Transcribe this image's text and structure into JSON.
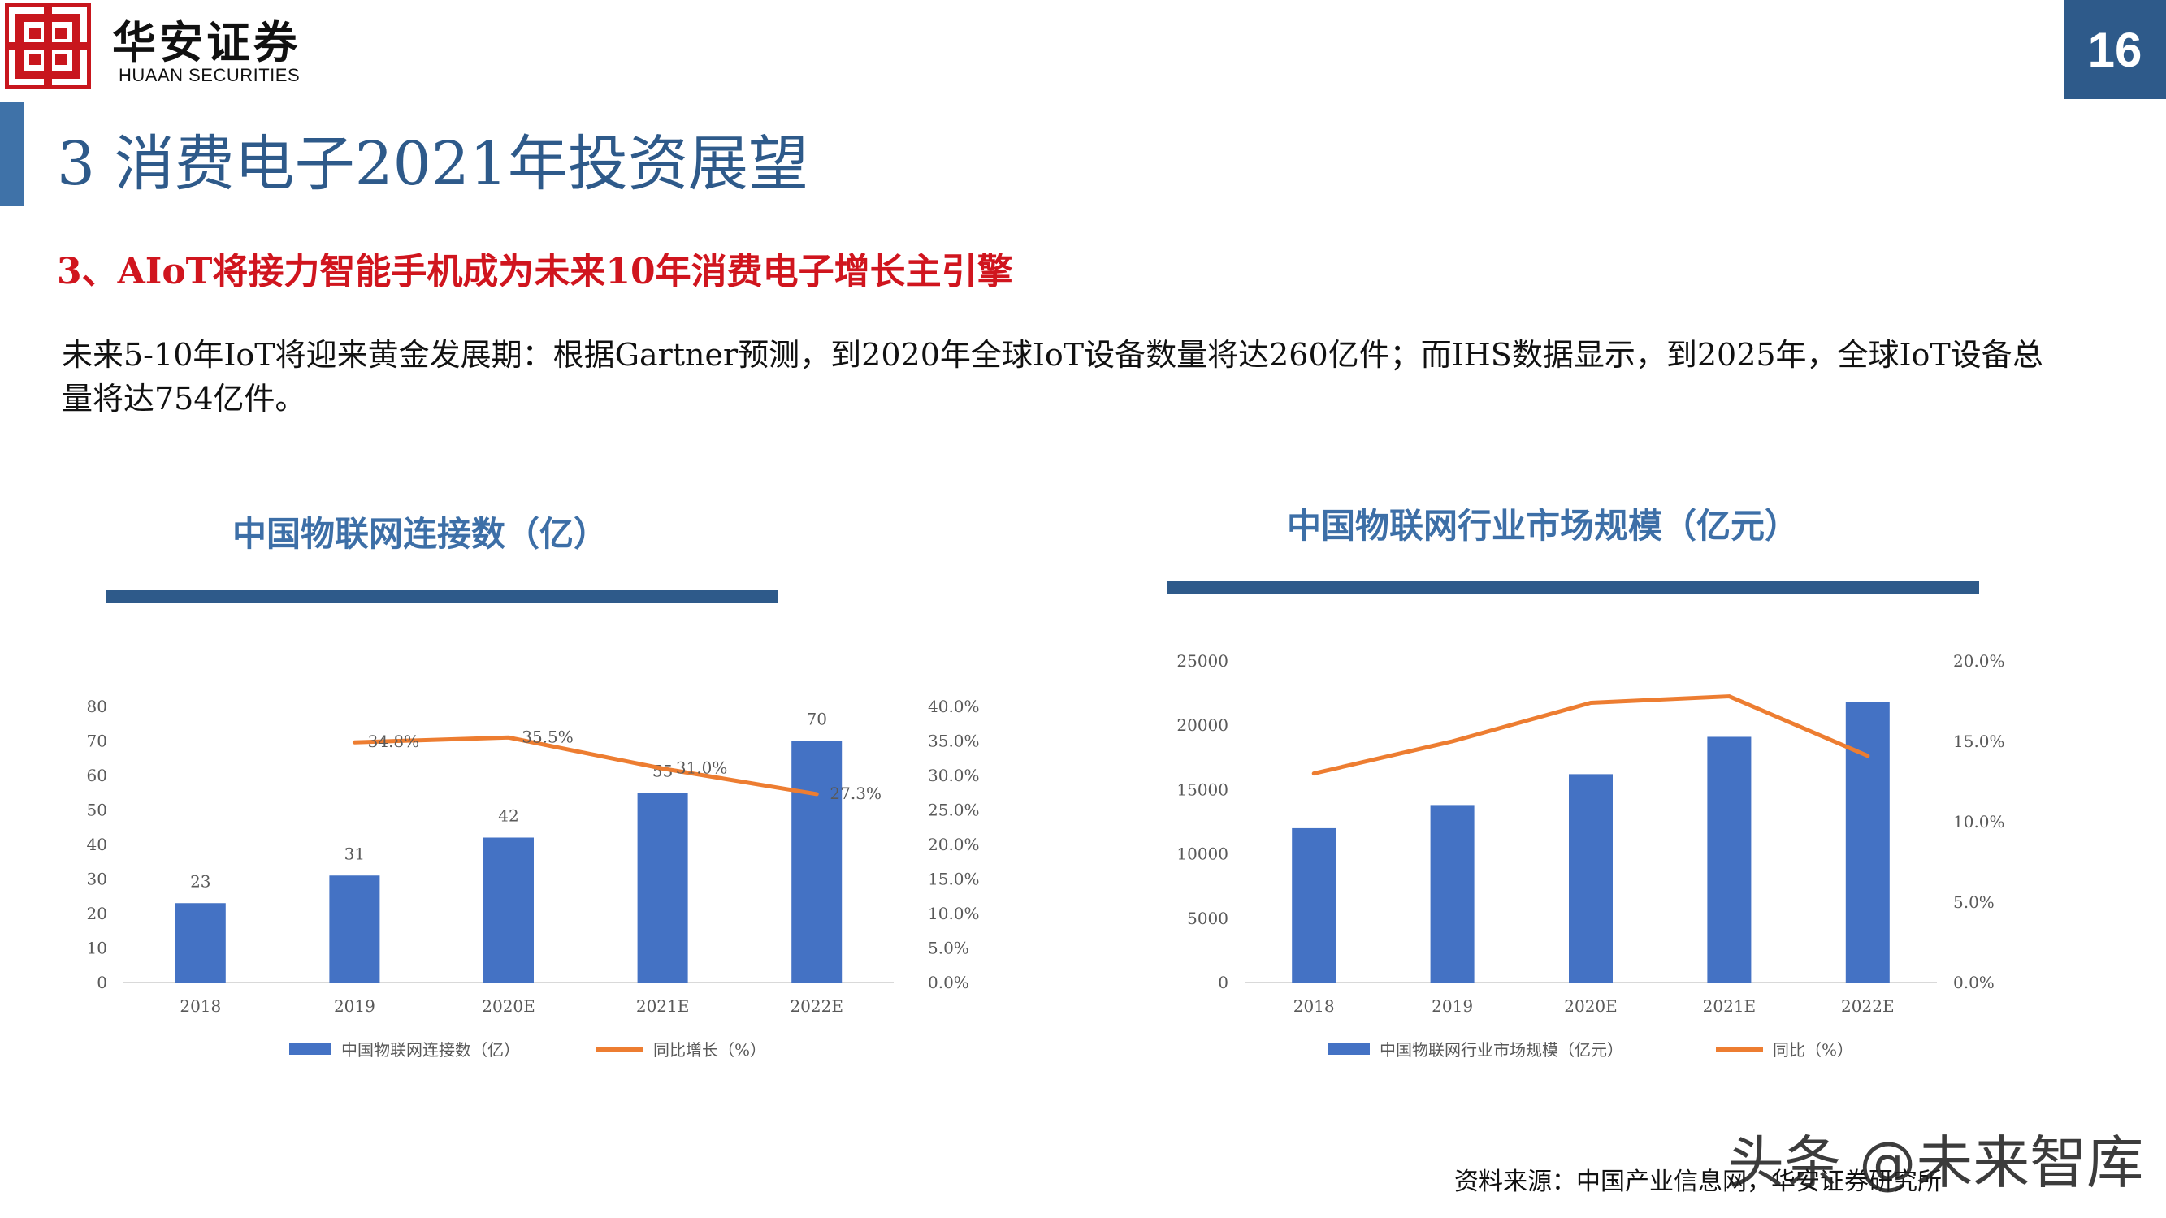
{
  "header": {
    "brand_cn": "华安证券",
    "brand_en": "HUAAN SECURITIES",
    "logo_color": "#c8161d",
    "page_number": "16"
  },
  "page_title": "3 消费电子2021年投资展望",
  "section_heading": "3、AIoT将接力智能手机成为未来10年消费电子增长主引擎",
  "body_text": "未来5-10年IoT将迎来黄金发展期：根据Gartner预测，到2020年全球IoT设备数量将达260亿件；而IHS数据显示，到2025年，全球IoT设备总量将达754亿件。",
  "chart_data": [
    {
      "type": "bar",
      "title": "中国物联网连接数（亿）",
      "categories": [
        "2018",
        "2019",
        "2020E",
        "2021E",
        "2022E"
      ],
      "series": [
        {
          "name": "中国物联网连接数（亿）",
          "type": "bar",
          "axis": "left",
          "color": "#4472c4",
          "values": [
            23,
            31,
            42,
            55,
            70
          ],
          "labels": [
            "23",
            "31",
            "42",
            "55",
            "70"
          ]
        },
        {
          "name": "同比增长（%）",
          "type": "line",
          "axis": "right",
          "color": "#ed7d31",
          "values": [
            null,
            34.8,
            35.5,
            31.0,
            27.3
          ],
          "labels": [
            "",
            "34.8%",
            "35.5%",
            "31.0%",
            "27.3%"
          ]
        }
      ],
      "ylim": [
        0,
        80
      ],
      "yticks": [
        "0",
        "10",
        "20",
        "30",
        "40",
        "50",
        "60",
        "70",
        "80"
      ],
      "y2lim": [
        0,
        40
      ],
      "y2ticks": [
        "0.0%",
        "5.0%",
        "10.0%",
        "15.0%",
        "20.0%",
        "25.0%",
        "30.0%",
        "35.0%",
        "40.0%"
      ],
      "legend": "bottom",
      "grid": false
    },
    {
      "type": "bar",
      "title": "中国物联网行业市场规模（亿元）",
      "categories": [
        "2018",
        "2019",
        "2020E",
        "2021E",
        "2022E"
      ],
      "series": [
        {
          "name": "中国物联网行业市场规模（亿元）",
          "type": "bar",
          "axis": "left",
          "color": "#4472c4",
          "values": [
            12000,
            13800,
            16200,
            19100,
            21800
          ]
        },
        {
          "name": "同比（%）",
          "type": "line",
          "axis": "right",
          "color": "#ed7d31",
          "values": [
            13.0,
            15.0,
            17.4,
            17.8,
            14.1
          ]
        }
      ],
      "ylim": [
        0,
        25000
      ],
      "yticks": [
        "0",
        "5000",
        "10000",
        "15000",
        "20000",
        "25000"
      ],
      "y2lim": [
        0,
        20
      ],
      "y2ticks": [
        "0.0%",
        "5.0%",
        "10.0%",
        "15.0%",
        "20.0%"
      ],
      "legend": "bottom",
      "grid": false
    }
  ],
  "source": "资料来源：中国产业信息网，华安证券研究所",
  "watermark": "头条 @未来智库"
}
